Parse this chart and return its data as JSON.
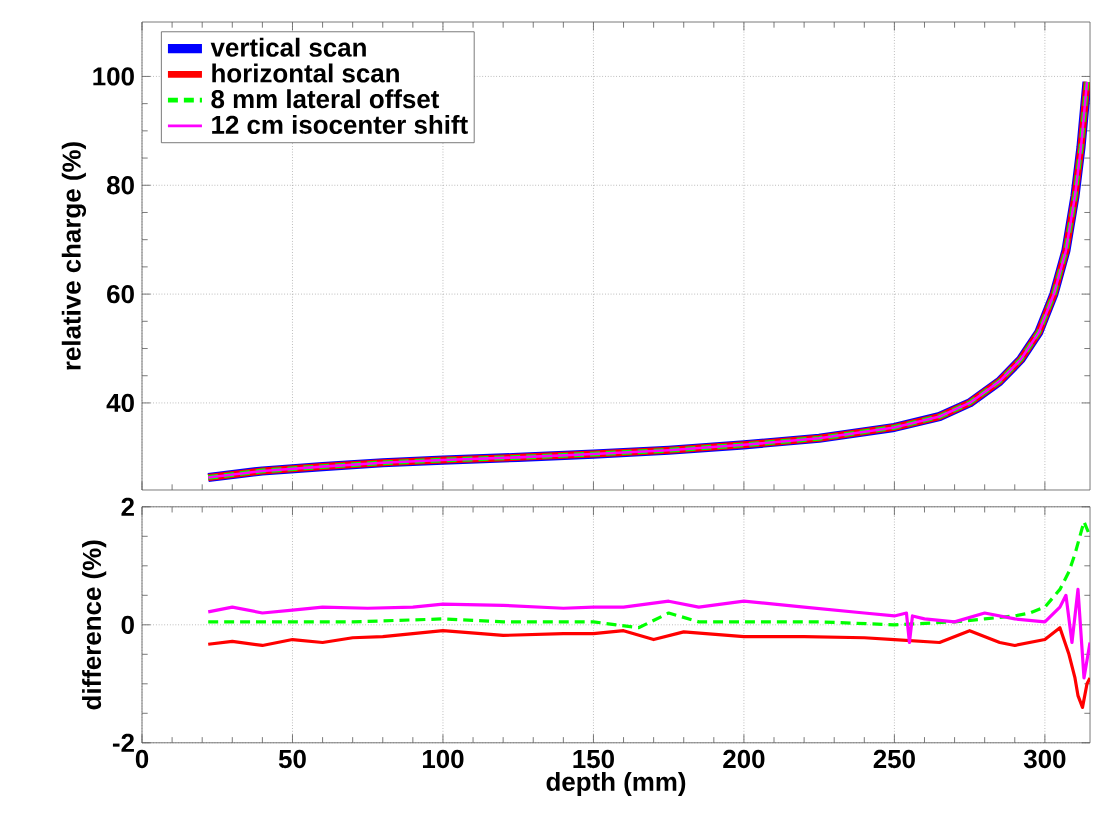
{
  "chart_data": [
    {
      "type": "line",
      "ylabel": "relative charge (%)",
      "xlim": [
        0,
        315
      ],
      "ylim": [
        24,
        110
      ],
      "xticks": [
        0,
        50,
        100,
        150,
        200,
        250,
        300
      ],
      "yticks": [
        40,
        60,
        80,
        100
      ],
      "tick_labels": "y",
      "grid": true,
      "legend": "top left",
      "series": [
        {
          "name": "vertical scan",
          "color": "#0000ff",
          "line_style": "solid",
          "x": [
            22,
            40,
            60,
            80,
            100,
            125,
            150,
            175,
            200,
            225,
            250,
            265,
            275,
            285,
            292,
            298,
            303,
            307,
            310,
            312,
            314
          ],
          "values": [
            26.3,
            27.5,
            28.3,
            29,
            29.5,
            30,
            30.6,
            31.3,
            32.3,
            33.5,
            35.5,
            37.5,
            40,
            44,
            48,
            53,
            60,
            68,
            78,
            87,
            99
          ]
        },
        {
          "name": "horizontal scan",
          "color": "#ff0000",
          "line_style": "solid",
          "x": [
            22,
            40,
            60,
            80,
            100,
            125,
            150,
            175,
            200,
            225,
            250,
            265,
            275,
            285,
            292,
            298,
            303,
            307,
            310,
            312,
            314
          ],
          "values": [
            26.3,
            27.5,
            28.3,
            29,
            29.5,
            30,
            30.6,
            31.3,
            32.3,
            33.5,
            35.5,
            37.5,
            40,
            44,
            48,
            53,
            60,
            68,
            78,
            87,
            99
          ]
        },
        {
          "name": "8 mm lateral offset",
          "color": "#00ff00",
          "line_style": "dashed",
          "x": [
            22,
            40,
            60,
            80,
            100,
            125,
            150,
            175,
            200,
            225,
            250,
            265,
            275,
            285,
            292,
            298,
            303,
            307,
            310,
            312,
            314
          ],
          "values": [
            26.3,
            27.5,
            28.3,
            29,
            29.5,
            30,
            30.6,
            31.3,
            32.3,
            33.5,
            35.5,
            37.5,
            40,
            44,
            48,
            53,
            60,
            68,
            78,
            87,
            99
          ]
        },
        {
          "name": "12 cm isocenter shift",
          "color": "#ff00ff",
          "line_style": "solid",
          "x": [
            22,
            40,
            60,
            80,
            100,
            125,
            150,
            175,
            200,
            225,
            250,
            265,
            275,
            285,
            292,
            298,
            303,
            307,
            310,
            312,
            314
          ],
          "values": [
            26.3,
            27.5,
            28.3,
            29,
            29.5,
            30,
            30.6,
            31.3,
            32.3,
            33.5,
            35.5,
            37.5,
            40,
            44,
            48,
            53,
            60,
            68,
            78,
            87,
            99
          ]
        }
      ]
    },
    {
      "type": "line",
      "xlabel": "depth (mm)",
      "ylabel": "difference (%)",
      "xlim": [
        0,
        315
      ],
      "ylim": [
        -2,
        2
      ],
      "xticks": [
        0,
        50,
        100,
        150,
        200,
        250,
        300
      ],
      "yticks": [
        -2,
        0,
        2
      ],
      "grid": true,
      "series": [
        {
          "color": "#ff0000",
          "line_style": "solid",
          "x": [
            22,
            30,
            40,
            50,
            60,
            70,
            80,
            90,
            100,
            120,
            140,
            150,
            160,
            170,
            180,
            200,
            220,
            240,
            250,
            265,
            275,
            285,
            290,
            300,
            305,
            308,
            310,
            311,
            312.5,
            314,
            315
          ],
          "values": [
            -0.33,
            -0.28,
            -0.35,
            -0.25,
            -0.3,
            -0.22,
            -0.2,
            -0.15,
            -0.1,
            -0.18,
            -0.15,
            -0.15,
            -0.1,
            -0.25,
            -0.12,
            -0.2,
            -0.2,
            -0.22,
            -0.25,
            -0.3,
            -0.1,
            -0.3,
            -0.35,
            -0.25,
            -0.05,
            -0.5,
            -0.9,
            -1.2,
            -1.4,
            -1.0,
            -0.9
          ]
        },
        {
          "color": "#00ff00",
          "line_style": "dashed",
          "x": [
            22,
            40,
            50,
            70,
            100,
            120,
            150,
            165,
            175,
            185,
            200,
            225,
            250,
            270,
            280,
            290,
            295,
            300,
            305,
            308,
            310,
            313,
            315
          ],
          "values": [
            0.05,
            0.05,
            0.05,
            0.05,
            0.1,
            0.05,
            0.05,
            -0.05,
            0.2,
            0.05,
            0.05,
            0.05,
            0,
            0.05,
            0.1,
            0.15,
            0.2,
            0.3,
            0.6,
            0.9,
            1.2,
            1.75,
            1.5
          ]
        },
        {
          "color": "#ff00ff",
          "line_style": "solid",
          "x": [
            22,
            30,
            40,
            50,
            60,
            75,
            90,
            100,
            120,
            140,
            150,
            160,
            175,
            185,
            200,
            220,
            240,
            250,
            254,
            255,
            256,
            260,
            270,
            280,
            290,
            300,
            305,
            307,
            309,
            311,
            313,
            315
          ],
          "values": [
            0.22,
            0.3,
            0.2,
            0.25,
            0.3,
            0.28,
            0.3,
            0.35,
            0.33,
            0.28,
            0.3,
            0.3,
            0.4,
            0.3,
            0.4,
            0.3,
            0.2,
            0.15,
            0.2,
            -0.3,
            0.15,
            0.1,
            0.05,
            0.2,
            0.1,
            0.05,
            0.3,
            0.5,
            -0.3,
            0.6,
            -0.9,
            -0.3
          ]
        }
      ]
    }
  ]
}
